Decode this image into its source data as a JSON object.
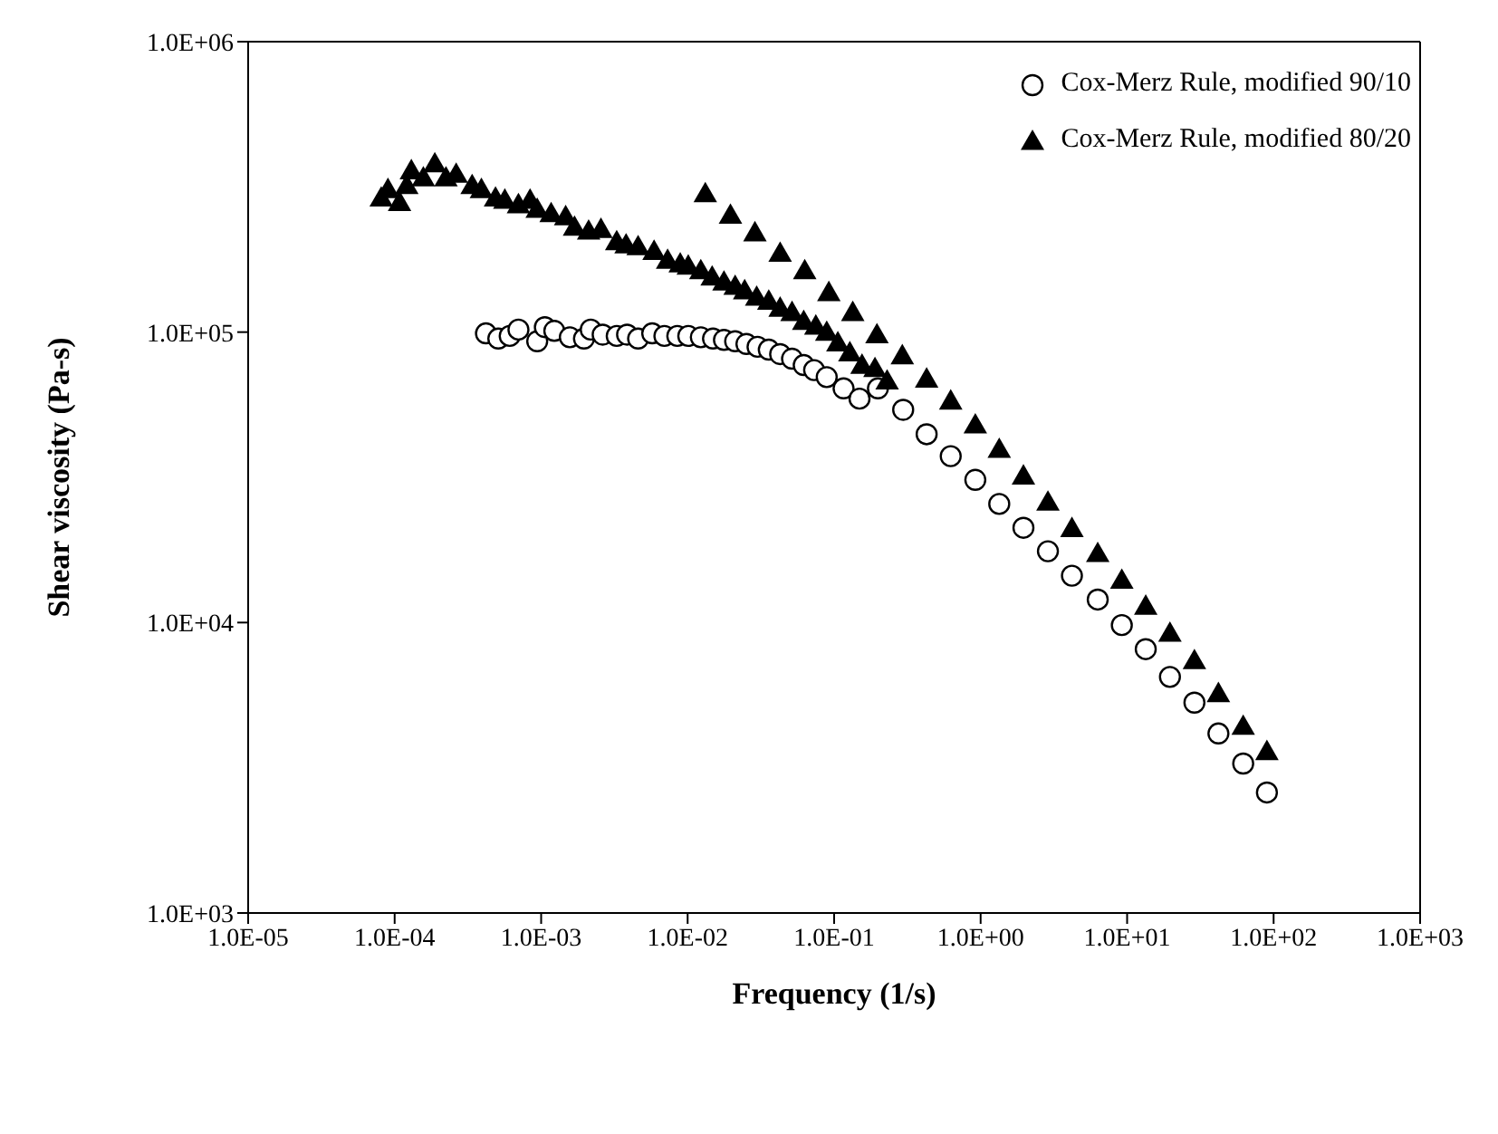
{
  "chart_data": {
    "type": "scatter",
    "xlabel": "Frequency (1/s)",
    "ylabel": "Shear viscosity (Pa-s)",
    "log": "xy",
    "grid": false,
    "legend": "top right",
    "xlim": [
      1e-05,
      1000
    ],
    "ylim": [
      1000,
      1000000
    ],
    "xticks": [
      {
        "value": 1e-05,
        "label": "1.0E-05"
      },
      {
        "value": 0.0001,
        "label": "1.0E-04"
      },
      {
        "value": 0.001,
        "label": "1.0E-03"
      },
      {
        "value": 0.01,
        "label": "1.0E-02"
      },
      {
        "value": 0.1,
        "label": "1.0E-01"
      },
      {
        "value": 1,
        "label": "1.0E+00"
      },
      {
        "value": 10,
        "label": "1.0E+01"
      },
      {
        "value": 100,
        "label": "1.0E+02"
      },
      {
        "value": 1000,
        "label": "1.0E+03"
      }
    ],
    "yticks": [
      {
        "value": 1000,
        "label": "1.0E+03"
      },
      {
        "value": 10000,
        "label": "1.0E+04"
      },
      {
        "value": 100000,
        "label": "1.0E+05"
      },
      {
        "value": 1000000,
        "label": "1.0E+06"
      }
    ],
    "series": [
      {
        "name": "Cox-Merz Rule, modified 90/10",
        "color": "#000000",
        "marker": "circle",
        "x": [
          0.00042,
          0.00051,
          0.00061,
          0.0007,
          0.00094,
          0.00106,
          0.00123,
          0.00157,
          0.00196,
          0.00218,
          0.00263,
          0.00328,
          0.00386,
          0.00459,
          0.00573,
          0.00694,
          0.0085,
          0.0101,
          0.0123,
          0.0149,
          0.0177,
          0.0211,
          0.0252,
          0.03,
          0.0358,
          0.0428,
          0.0516,
          0.062,
          0.073,
          0.089,
          0.116,
          0.149,
          0.199,
          0.296,
          0.428,
          0.625,
          0.92,
          1.34,
          1.96,
          2.88,
          4.2,
          6.3,
          9.2,
          13.4,
          19.6,
          28.8,
          42,
          62,
          90
        ],
        "values": [
          99000,
          95000,
          97000,
          102000,
          93000,
          104000,
          101000,
          96000,
          95000,
          102000,
          98000,
          97000,
          98000,
          95000,
          99000,
          97000,
          97000,
          97000,
          96000,
          95000,
          94000,
          93000,
          91000,
          89000,
          87000,
          84000,
          81000,
          77000,
          74000,
          70000,
          64000,
          59000,
          64000,
          54000,
          44500,
          37400,
          31000,
          25600,
          21200,
          17600,
          14500,
          12000,
          9800,
          8100,
          6500,
          5300,
          4150,
          3270,
          2600
        ]
      },
      {
        "name": "Cox-Merz Rule, modified 80/20",
        "color": "#000000",
        "marker": "triangle",
        "x": [
          8.1e-05,
          9e-05,
          0.000108,
          0.000121,
          0.00013,
          0.000157,
          0.000188,
          0.000224,
          0.000263,
          0.000338,
          0.000391,
          0.000488,
          0.000565,
          0.0007,
          0.00084,
          0.00094,
          0.00117,
          0.00147,
          0.00169,
          0.00211,
          0.00256,
          0.00328,
          0.0038,
          0.00459,
          0.0059,
          0.0073,
          0.0089,
          0.0101,
          0.0123,
          0.0147,
          0.0177,
          0.0211,
          0.0245,
          0.0296,
          0.0358,
          0.0428,
          0.0516,
          0.062,
          0.075,
          0.089,
          0.106,
          0.128,
          0.155,
          0.19,
          0.23,
          0.0132,
          0.0196,
          0.0288,
          0.0428,
          0.063,
          0.092,
          0.134,
          0.196,
          0.292,
          0.428,
          0.625,
          0.92,
          1.34,
          1.96,
          2.88,
          4.2,
          6.3,
          9.2,
          13.4,
          19.6,
          28.8,
          42,
          62,
          90
        ],
        "values": [
          290000,
          310000,
          280000,
          320000,
          360000,
          340000,
          380000,
          340000,
          350000,
          320000,
          310000,
          290000,
          285000,
          275000,
          285000,
          265000,
          256000,
          250000,
          230000,
          223000,
          226000,
          205000,
          200000,
          197000,
          190000,
          177000,
          172000,
          169000,
          163000,
          155000,
          149000,
          144000,
          139000,
          132000,
          128000,
          121000,
          117000,
          109000,
          105000,
          100000,
          92000,
          85000,
          77000,
          75000,
          68000,
          300000,
          253000,
          220000,
          187000,
          163000,
          137000,
          117000,
          98000,
          83000,
          69000,
          58000,
          48000,
          39500,
          32000,
          26000,
          21100,
          17300,
          14000,
          11400,
          9200,
          7400,
          5700,
          4400,
          3600
        ]
      }
    ]
  }
}
